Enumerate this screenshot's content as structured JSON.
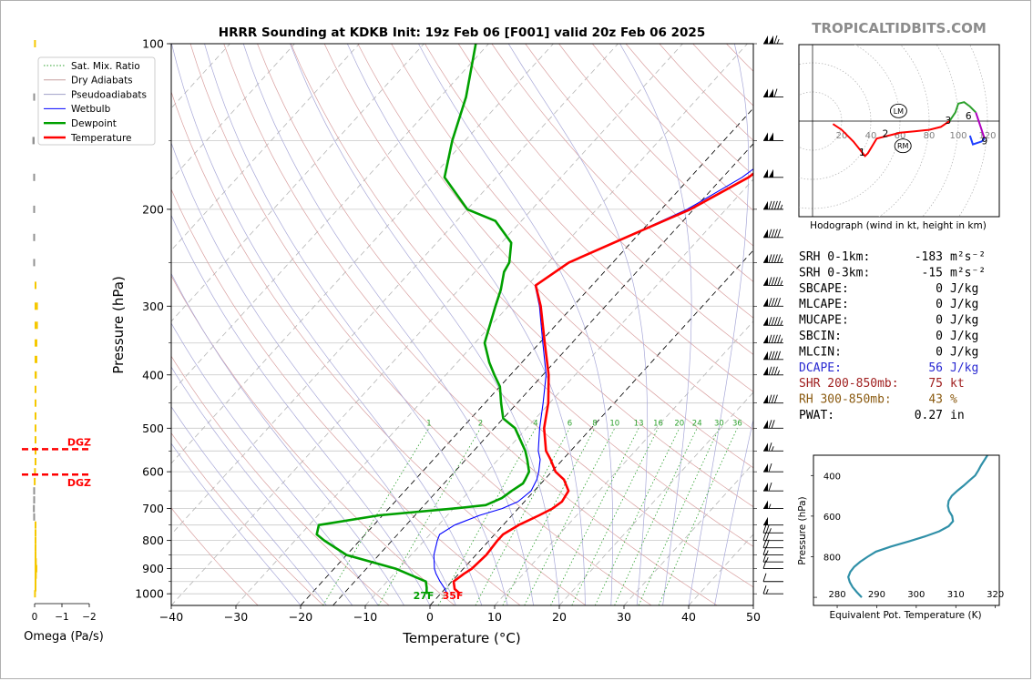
{
  "title": "HRRR Sounding at KDKB Init: 19z Feb 06 [F001] valid 20z Feb 06 2025",
  "brand": "TROPICALTIDBITS.COM",
  "skewt": {
    "xlabel": "Temperature (°C)",
    "ylabel": "Pressure (hPa)",
    "xlim": [
      -40,
      50
    ],
    "ylim": [
      1050,
      100
    ],
    "x_ticks": [
      -40,
      -30,
      -20,
      -10,
      0,
      10,
      20,
      30,
      40,
      50
    ],
    "x_tick_labels": [
      "−40",
      "−30",
      "−20",
      "−10",
      "0",
      "10",
      "20",
      "30",
      "40",
      "50"
    ],
    "y_ticks": [
      100,
      200,
      300,
      400,
      500,
      600,
      700,
      800,
      900,
      1000
    ],
    "y_tick_labels": [
      "100",
      "200",
      "300",
      "400",
      "500",
      "600",
      "700",
      "800",
      "900",
      "1000"
    ],
    "mixing_ratio_labels": [
      "1",
      "2",
      "4",
      "6",
      "8",
      "10",
      "13",
      "16",
      "20",
      "24",
      "30",
      "36"
    ],
    "surface_dewpoint_label": "27F",
    "surface_temperature_label": "35F",
    "legend": [
      {
        "label": "Sat. Mix. Ratio",
        "color": "#2ca02c",
        "style": "dotted"
      },
      {
        "label": "Dry Adiabats",
        "color": "#c8a0a0",
        "style": "solid"
      },
      {
        "label": "Pseudoadiabats",
        "color": "#a0a0c8",
        "style": "solid"
      },
      {
        "label": "Wetbulb",
        "color": "#0000ff",
        "style": "solid"
      },
      {
        "label": "Dewpoint",
        "color": "#00a000",
        "style": "solid"
      },
      {
        "label": "Temperature",
        "color": "#ff0000",
        "style": "solid"
      }
    ]
  },
  "omega": {
    "xlabel": "Omega (Pa/s)",
    "tick_labels": [
      "0",
      "−1",
      "−2"
    ],
    "dgz_label": "DGZ",
    "dgz_layers_hpa": [
      546,
      607
    ]
  },
  "hodograph": {
    "caption": "Hodograph (wind in kt, height in km)",
    "ring_labels": [
      "20",
      "40",
      "60",
      "80",
      "100",
      "120"
    ],
    "height_labels": [
      "1",
      "2",
      "3",
      "6",
      "9"
    ],
    "storm_motion_labels": [
      "LM",
      "RM"
    ]
  },
  "indices": [
    {
      "label": "SRH 0-1km:",
      "value": "-183",
      "unit": "m²s⁻²",
      "color": "#000000"
    },
    {
      "label": "SRH 0-3km:",
      "value": "-15",
      "unit": "m²s⁻²",
      "color": "#000000"
    },
    {
      "label": "SBCAPE:",
      "value": "0",
      "unit": "J/kg",
      "color": "#000000"
    },
    {
      "label": "MLCAPE:",
      "value": "0",
      "unit": "J/kg",
      "color": "#000000"
    },
    {
      "label": "MUCAPE:",
      "value": "0",
      "unit": "J/kg",
      "color": "#000000"
    },
    {
      "label": "SBCIN:",
      "value": "0",
      "unit": "J/kg",
      "color": "#000000"
    },
    {
      "label": "MLCIN:",
      "value": "0",
      "unit": "J/kg",
      "color": "#000000"
    },
    {
      "label": "DCAPE:",
      "value": "56",
      "unit": "J/kg",
      "color": "#2a2ad2"
    },
    {
      "label": "SHR 200-850mb:",
      "value": "75",
      "unit": "kt",
      "color": "#a02020"
    },
    {
      "label": "RH 300-850mb:",
      "value": "43",
      "unit": "%",
      "color": "#8a5a10"
    },
    {
      "label": "PWAT:",
      "value": "0.27",
      "unit": "in",
      "color": "#000000"
    }
  ],
  "theta_e": {
    "xlabel": "Equivalent Pot. Temperature (K)",
    "ylabel": "Pressure (hPa)",
    "x_ticks": [
      280,
      290,
      300,
      310,
      320
    ],
    "x_tick_labels": [
      "280",
      "290",
      "300",
      "310",
      "320"
    ],
    "y_ticks": [
      400,
      600,
      800
    ],
    "y_tick_labels": [
      "400",
      "600",
      "800"
    ]
  },
  "chart_data": [
    {
      "type": "line",
      "title": "HRRR Sounding at KDKB Init: 19z Feb 06 [F001] valid 20z Feb 06 2025",
      "xlabel": "Temperature (°C)",
      "ylabel": "Pressure (hPa)",
      "xlim": [
        -40,
        50
      ],
      "ylim": [
        1050,
        100
      ],
      "yscale": "log",
      "skew": "skew-T",
      "grid": true,
      "legend_position": "top-left",
      "series": [
        {
          "name": "Temperature",
          "color": "#ff0000",
          "pressure": [
            1000,
            980,
            950,
            920,
            900,
            850,
            800,
            780,
            750,
            720,
            700,
            680,
            650,
            620,
            600,
            570,
            550,
            500,
            450,
            400,
            350,
            300,
            275,
            250,
            220,
            200,
            175,
            150,
            125,
            100
          ],
          "temperature": [
            3.0,
            1.5,
            0.3,
            0.8,
            1.3,
            1.6,
            1.3,
            1.3,
            2.4,
            4.2,
            5.3,
            5.8,
            5.3,
            3.0,
            0.6,
            -1.9,
            -3.8,
            -7.3,
            -10.2,
            -14.1,
            -19.2,
            -25.0,
            -28.7,
            -26.8,
            -20.4,
            -15.5,
            -11.0,
            -8.5,
            -8.2,
            -10.5
          ]
        },
        {
          "name": "Dewpoint",
          "color": "#00a000",
          "pressure": [
            1000,
            990,
            975,
            950,
            900,
            850,
            800,
            780,
            750,
            720,
            700,
            690,
            670,
            650,
            630,
            620,
            600,
            570,
            550,
            500,
            480,
            450,
            420,
            400,
            380,
            350,
            300,
            280,
            260,
            250,
            230,
            210,
            200,
            175,
            150,
            125,
            100
          ],
          "dewpoint": [
            -2.0,
            -2.5,
            -3.0,
            -4.0,
            -10.5,
            -20.0,
            -25.5,
            -27.5,
            -28.5,
            -20.5,
            -10.0,
            -5.5,
            -4.0,
            -3.5,
            -2.8,
            -3.0,
            -3.5,
            -5.5,
            -7.0,
            -11.8,
            -15.0,
            -17.5,
            -20.0,
            -22.5,
            -25.0,
            -28.5,
            -32.0,
            -33.5,
            -35.5,
            -36.0,
            -38.5,
            -44.0,
            -50.0,
            -58.0,
            -62.0,
            -66.0,
            -72.0
          ]
        },
        {
          "name": "Wetbulb",
          "color": "#0000ff",
          "pressure": [
            1000,
            980,
            950,
            920,
            900,
            850,
            800,
            780,
            750,
            720,
            700,
            680,
            650,
            620,
            600,
            570,
            550,
            500,
            450,
            400,
            350,
            300,
            275,
            250,
            220,
            200,
            175,
            150,
            125,
            100
          ],
          "wetbulb": [
            1.0,
            0.0,
            -1.8,
            -3.5,
            -4.5,
            -6.5,
            -8.0,
            -8.5,
            -7.5,
            -5.0,
            -2.5,
            -1.0,
            -0.5,
            -1.2,
            -2.0,
            -3.5,
            -5.0,
            -8.0,
            -11.0,
            -14.5,
            -19.5,
            -25.2,
            -28.8,
            -26.8,
            -20.5,
            -16.0,
            -12.0,
            -9.5,
            -8.8,
            -10.5
          ]
        }
      ]
    },
    {
      "type": "line",
      "xlabel": "Equivalent Pot. Temperature (K)",
      "ylabel": "Pressure (hPa)",
      "xlim": [
        274,
        321
      ],
      "ylim": [
        1000,
        300
      ],
      "series": [
        {
          "name": "",
          "color": "#3090a8",
          "pressure": [
            1000,
            975,
            950,
            925,
            900,
            875,
            850,
            825,
            800,
            775,
            750,
            725,
            700,
            675,
            650,
            625,
            600,
            575,
            550,
            525,
            500,
            475,
            450,
            425,
            400,
            375,
            350,
            325,
            300
          ],
          "theta_e": [
            286.2,
            285.0,
            283.9,
            283.2,
            282.8,
            283.3,
            284.3,
            285.8,
            287.7,
            289.8,
            293.6,
            298.0,
            302.2,
            305.8,
            308.2,
            309.3,
            309.1,
            308.3,
            308.0,
            308.2,
            309.0,
            310.4,
            312.0,
            313.4,
            314.9,
            315.7,
            316.4,
            317.2,
            318.0
          ]
        }
      ]
    },
    {
      "type": "line",
      "xlabel": "Omega (Pa/s)",
      "ylim": [
        1050,
        100
      ],
      "series": [
        {
          "name": "",
          "color": "#f0c000",
          "pressure": [
            1000,
            975,
            950,
            925,
            900,
            875,
            850,
            825,
            800,
            775,
            750,
            725,
            700,
            675,
            650,
            625,
            600,
            575,
            550,
            525,
            500,
            475,
            450,
            425,
            400,
            375,
            350,
            325,
            300,
            275,
            250,
            225,
            200,
            175,
            150,
            125,
            100
          ],
          "omega": [
            0.02,
            -0.05,
            -0.05,
            -0.08,
            -0.1,
            -0.08,
            -0.05,
            -0.05,
            -0.05,
            -0.02,
            0.0,
            0.05,
            0.06,
            0.05,
            0.05,
            0.03,
            0.02,
            0.0,
            -0.02,
            -0.03,
            -0.05,
            -0.05,
            -0.05,
            -0.05,
            -0.08,
            -0.1,
            -0.1,
            -0.12,
            -0.12,
            -0.05,
            0.05,
            0.05,
            0.05,
            0.05,
            0.08,
            0.05,
            0.02
          ]
        }
      ]
    }
  ]
}
